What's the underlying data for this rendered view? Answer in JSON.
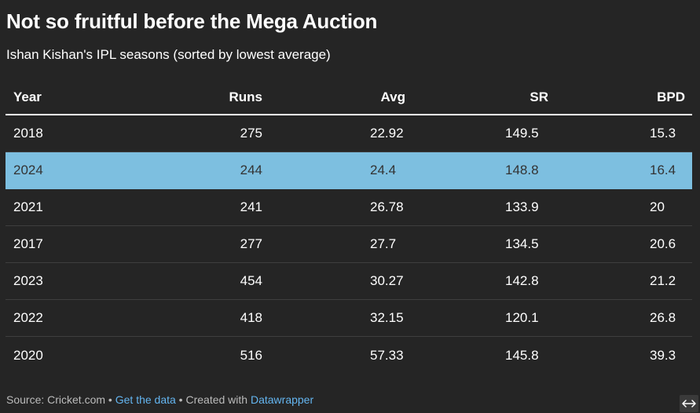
{
  "header": {
    "title": "Not so fruitful before the Mega Auction",
    "subtitle": "Ishan Kishan's IPL seasons (sorted by lowest average)"
  },
  "colors": {
    "background": "#252525",
    "highlight_row": "#7dbfe0",
    "link": "#64b5f0"
  },
  "chart_data": {
    "type": "table",
    "columns": [
      "Year",
      "Runs",
      "Avg",
      "SR",
      "BPD"
    ],
    "rows": [
      {
        "year": "2018",
        "runs": "275",
        "avg": "22.92",
        "sr": "149.5",
        "bpd": "15.3",
        "highlight": false
      },
      {
        "year": "2024",
        "runs": "244",
        "avg": "24.4",
        "sr": "148.8",
        "bpd": "16.4",
        "highlight": true
      },
      {
        "year": "2021",
        "runs": "241",
        "avg": "26.78",
        "sr": "133.9",
        "bpd": "20",
        "highlight": false
      },
      {
        "year": "2017",
        "runs": "277",
        "avg": "27.7",
        "sr": "134.5",
        "bpd": "20.6",
        "highlight": false
      },
      {
        "year": "2023",
        "runs": "454",
        "avg": "30.27",
        "sr": "142.8",
        "bpd": "21.2",
        "highlight": false
      },
      {
        "year": "2022",
        "runs": "418",
        "avg": "32.15",
        "sr": "120.1",
        "bpd": "26.8",
        "highlight": false
      },
      {
        "year": "2020",
        "runs": "516",
        "avg": "57.33",
        "sr": "145.8",
        "bpd": "39.3",
        "highlight": false
      }
    ]
  },
  "footer": {
    "source": "Source: Cricket.com",
    "separator": " • ",
    "get_data": "Get the data",
    "created_with": "Created with ",
    "datawrapper": "Datawrapper"
  },
  "resize_icon": "horizontal-arrows-icon"
}
